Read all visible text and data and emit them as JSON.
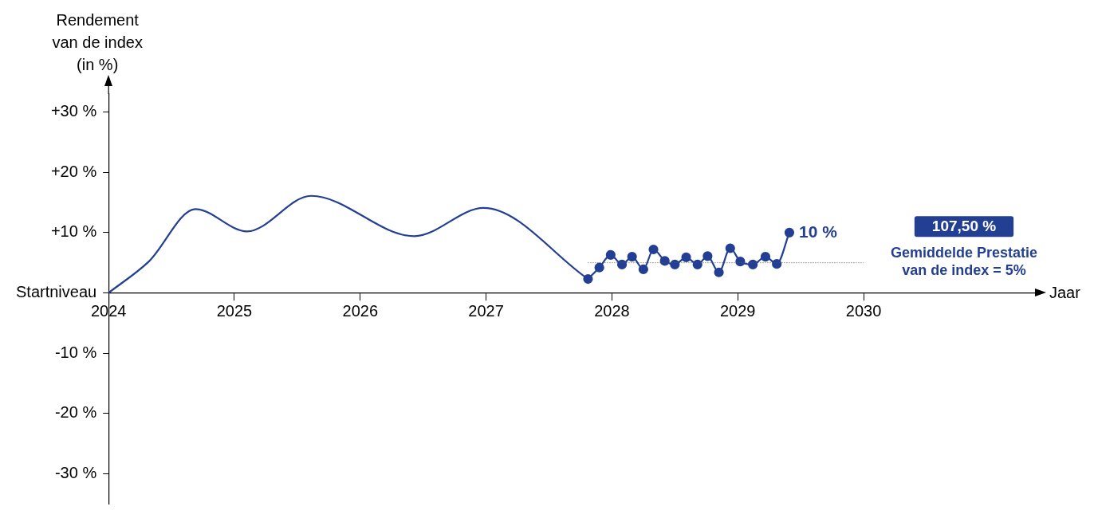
{
  "chart_data": {
    "type": "line",
    "xlabel": "Jaar",
    "ylabel": "Rendement van de index (in %)",
    "xlim": [
      2024,
      2031.4
    ],
    "xticks": [
      2024,
      2025,
      2026,
      2027,
      2028,
      2029,
      2030
    ],
    "ylim": [
      -35,
      33
    ],
    "yticks": [
      {
        "value": 30,
        "label": "+30 %"
      },
      {
        "value": 20,
        "label": "+20 %"
      },
      {
        "value": 10,
        "label": "+10 %"
      },
      {
        "value": 0,
        "label": "Startniveau"
      },
      {
        "value": -10,
        "label": "-10 %"
      },
      {
        "value": -20,
        "label": "-20 %"
      },
      {
        "value": -30,
        "label": "-30 %"
      }
    ],
    "grid": false,
    "legend": false,
    "series": [
      {
        "color": "#233f94",
        "marker": "none",
        "x": [
          2024,
          2024.32,
          2024.69,
          2025.1,
          2025.61,
          2026.43,
          2026.98,
          2027.81
        ],
        "values": [
          0,
          5.2,
          13.9,
          10.2,
          16.1,
          9.4,
          14.1,
          2.3
        ]
      },
      {
        "color": "#233f94",
        "marker": "circle",
        "x": [
          2027.81,
          2027.9,
          2027.99,
          2028.08,
          2028.16,
          2028.25,
          2028.33,
          2028.42,
          2028.5,
          2028.59,
          2028.68,
          2028.76,
          2028.85,
          2028.94,
          2029.02,
          2029.12,
          2029.22,
          2029.31,
          2029.41
        ],
        "values": [
          2.3,
          4.2,
          6.3,
          4.7,
          6,
          3.9,
          7.2,
          5.3,
          4.7,
          5.9,
          4.7,
          6.1,
          3.4,
          7.4,
          5.2,
          4.7,
          6,
          4.8,
          10
        ],
        "value_labels": [
          null,
          null,
          null,
          null,
          null,
          null,
          null,
          null,
          null,
          null,
          null,
          null,
          null,
          null,
          null,
          null,
          null,
          null,
          "10 %"
        ]
      }
    ],
    "ref_lines": [
      {
        "axis": "y",
        "value": 5,
        "label": "Gemiddelde Prestatie van de index = 5%",
        "color": "#555555",
        "line_style": "dotted"
      }
    ],
    "annotations": [
      "107,50 %"
    ]
  }
}
